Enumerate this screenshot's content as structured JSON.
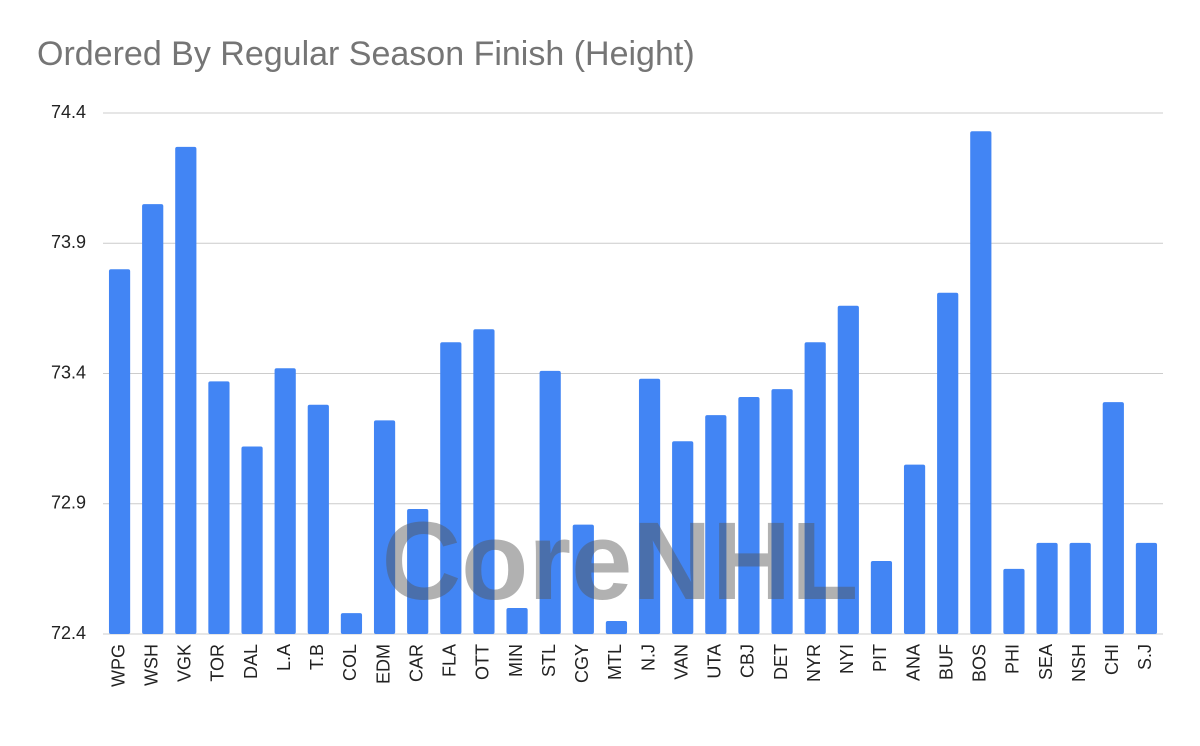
{
  "chart_data": {
    "type": "bar",
    "title": "Ordered By Regular Season Finish  (Height)",
    "watermark": "CoreNHL",
    "categories": [
      "WPG",
      "WSH",
      "VGK",
      "TOR",
      "DAL",
      "L.A",
      "T.B",
      "COL",
      "EDM",
      "CAR",
      "FLA",
      "OTT",
      "MIN",
      "STL",
      "CGY",
      "MTL",
      "N.J",
      "VAN",
      "UTA",
      "CBJ",
      "DET",
      "NYR",
      "NYI",
      "PIT",
      "ANA",
      "BUF",
      "BOS",
      "PHI",
      "SEA",
      "NSH",
      "CHI",
      "S.J"
    ],
    "values": [
      73.8,
      74.05,
      74.27,
      73.37,
      73.12,
      73.42,
      73.28,
      72.48,
      73.22,
      72.88,
      73.52,
      73.57,
      72.5,
      73.41,
      72.82,
      72.45,
      73.38,
      73.14,
      73.24,
      73.31,
      73.34,
      73.52,
      73.66,
      72.68,
      73.05,
      73.71,
      74.33,
      72.65,
      72.75,
      72.75,
      73.29,
      72.75
    ],
    "color": "#4285f4",
    "ylim": [
      72.4,
      74.4
    ],
    "yticks": [
      72.4,
      72.9,
      73.4,
      73.9,
      74.4
    ],
    "grid": true
  }
}
